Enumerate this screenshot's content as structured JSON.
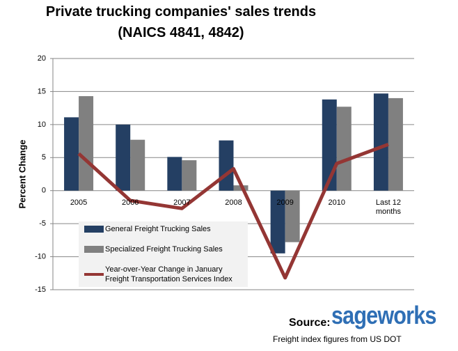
{
  "chart_data": {
    "type": "bar",
    "title": "Private trucking companies' sales trends",
    "subtitle": "(NAICS 4841, 4842)",
    "y_label": "Percent Change",
    "categories": [
      "2005",
      "2006",
      "2007",
      "2008",
      "2009",
      "2010",
      "Last 12 months"
    ],
    "series": [
      {
        "name": "General Freight Trucking Sales",
        "type": "bar",
        "color": "#243f63",
        "values": [
          11.1,
          10.0,
          5.1,
          7.6,
          -9.5,
          13.8,
          14.7
        ]
      },
      {
        "name": "Specialized Freight Trucking Sales",
        "type": "bar",
        "color": "#808080",
        "values": [
          14.3,
          7.7,
          4.6,
          0.8,
          -7.8,
          12.7,
          14.0
        ]
      },
      {
        "name": "Year-over-Year Change in January Freight Transportation  Services Index",
        "type": "line",
        "color": "#943634",
        "values": [
          5.6,
          -1.5,
          -2.7,
          3.3,
          -13.2,
          4.1,
          7.0
        ]
      }
    ],
    "ylim": [
      -15,
      20
    ],
    "yticks": [
      -15,
      -10,
      -5,
      0,
      5,
      10,
      15,
      20
    ],
    "grid": true,
    "source_label": "Source:",
    "source_logo": "sageworks",
    "note": "Freight index figures from US DOT"
  }
}
